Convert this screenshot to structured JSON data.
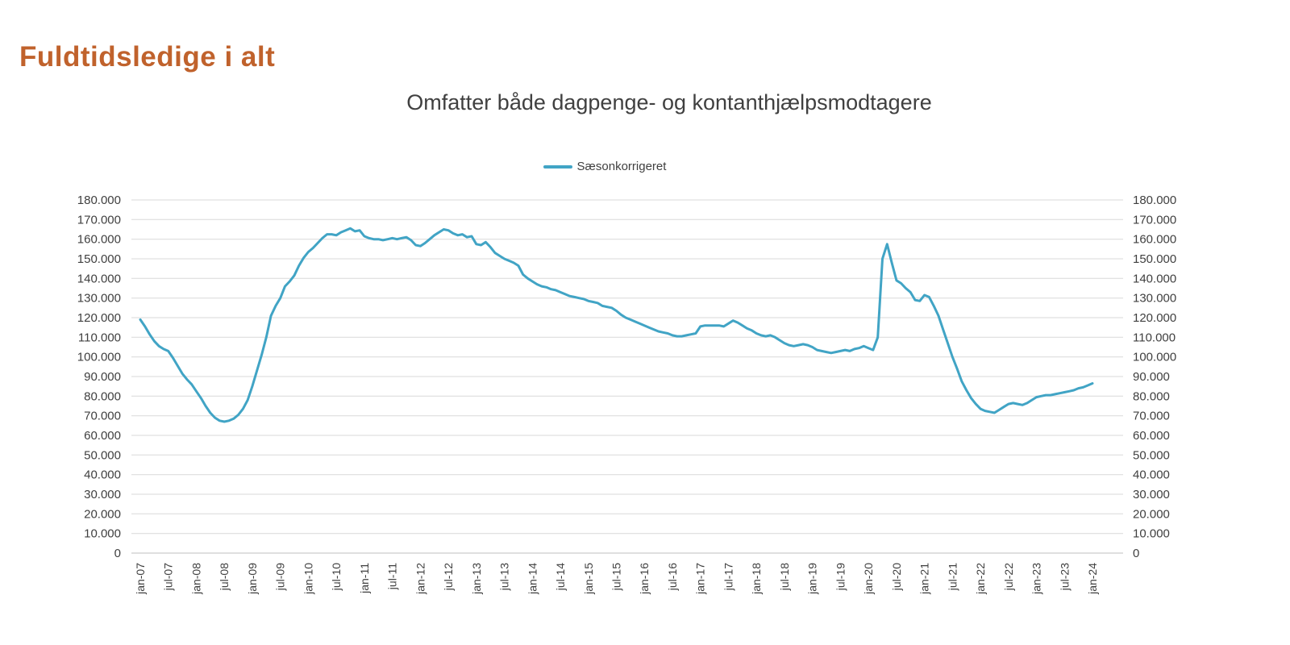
{
  "header": {
    "title": "Fuldtidsledige i alt"
  },
  "chart": {
    "title": "Omfatter både dagpenge- og kontanthjælpsmodtagere",
    "legend_label": "Sæsonkorrigeret"
  },
  "colors": {
    "heading": "#C0622C",
    "title_text": "#404040",
    "axis_text": "#3F3F3F",
    "gridline": "#D9D9D9",
    "axis_line": "#BFBFBF",
    "series_line": "#41A4C5"
  },
  "chart_data": {
    "type": "line",
    "title": "Omfatter både dagpenge- og kontanthjælpsmodtagere",
    "legend_position": "top",
    "grid": true,
    "ylim": [
      0,
      180000
    ],
    "y_step": 10000,
    "y_label_format": "danish-dot-thousands",
    "x_tick_labels": [
      "jan-07",
      "jul-07",
      "jan-08",
      "jul-08",
      "jan-09",
      "jul-09",
      "jan-10",
      "jul-10",
      "jan-11",
      "jul-11",
      "jan-12",
      "jul-12",
      "jan-13",
      "jul-13",
      "jan-14",
      "jul-14",
      "jan-15",
      "jul-15",
      "jan-16",
      "jul-16",
      "jan-17",
      "jul-17",
      "jan-18",
      "jul-18",
      "jan-19",
      "jul-19",
      "jan-20",
      "jul-20",
      "jan-21",
      "jul-21",
      "jan-22",
      "jul-22",
      "jan-23",
      "jul-23",
      "jan-24"
    ],
    "x_months_per_tick": 6,
    "x_label_rotation": -90,
    "series": [
      {
        "name": "Sæsonkorrigeret",
        "color": "#41A4C5",
        "values": [
          119000,
          115500,
          111500,
          108000,
          105500,
          104000,
          103000,
          99500,
          95500,
          91500,
          88500,
          86000,
          82500,
          79000,
          75000,
          71500,
          69000,
          67500,
          67000,
          67500,
          68500,
          70500,
          73500,
          78000,
          85000,
          93000,
          101000,
          110000,
          121000,
          126000,
          130000,
          136000,
          138500,
          141500,
          146500,
          150500,
          153500,
          155500,
          158000,
          160500,
          162500,
          162500,
          162000,
          163500,
          164500,
          165500,
          164000,
          164500,
          161500,
          160500,
          160000,
          160000,
          159500,
          160000,
          160500,
          160000,
          160500,
          161000,
          159500,
          157000,
          156500,
          158000,
          160000,
          162000,
          163500,
          165000,
          164500,
          163000,
          162000,
          162500,
          161000,
          161500,
          157500,
          157000,
          158500,
          156000,
          153000,
          151500,
          150000,
          149000,
          148000,
          146500,
          142000,
          140000,
          138500,
          137000,
          136000,
          135500,
          134500,
          134000,
          133000,
          132000,
          131000,
          130500,
          130000,
          129500,
          128500,
          128000,
          127500,
          126000,
          125500,
          125000,
          123500,
          121500,
          120000,
          119000,
          118000,
          117000,
          116000,
          115000,
          114000,
          113000,
          112500,
          112000,
          111000,
          110500,
          110500,
          111000,
          111500,
          112000,
          115500,
          116000,
          116000,
          116000,
          116000,
          115500,
          117000,
          118500,
          117500,
          116000,
          114500,
          113500,
          112000,
          111000,
          110500,
          111000,
          110000,
          108500,
          107000,
          106000,
          105500,
          106000,
          106500,
          106000,
          105000,
          103500,
          103000,
          102500,
          102000,
          102500,
          103000,
          103500,
          103000,
          104000,
          104500,
          105500,
          104500,
          103500,
          110000,
          150000,
          157500,
          148000,
          139000,
          137500,
          135000,
          133000,
          129000,
          128500,
          131500,
          130500,
          126000,
          121000,
          114000,
          107000,
          100000,
          94000,
          87500,
          83000,
          79000,
          76000,
          73500,
          72500,
          72000,
          71500,
          73000,
          74500,
          76000,
          76500,
          76000,
          75500,
          76500,
          78000,
          79500,
          80000,
          80500,
          80500,
          81000,
          81500,
          82000,
          82500,
          83000,
          84000,
          84500,
          85500,
          86500
        ]
      }
    ]
  }
}
